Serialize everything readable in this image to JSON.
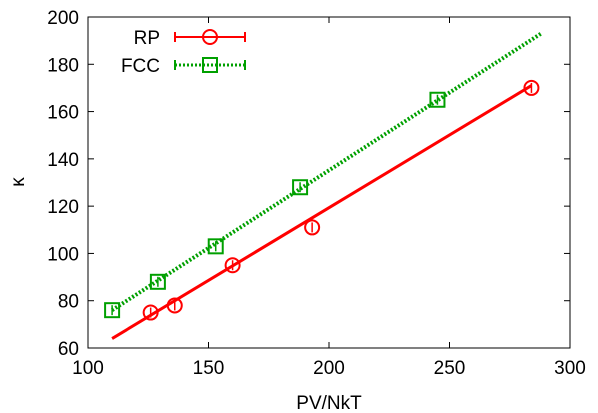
{
  "chart_data": {
    "type": "scatter",
    "title": "",
    "xlabel": "PV/NkT",
    "ylabel": "κ",
    "xlim": [
      100,
      300
    ],
    "ylim": [
      60,
      200
    ],
    "xticks": [
      "100",
      "150",
      "200",
      "250",
      "300"
    ],
    "yticks": [
      "60",
      "80",
      "100",
      "120",
      "140",
      "160",
      "180",
      "200"
    ],
    "grid": false,
    "legend_position": "top-left",
    "series": [
      {
        "name": "RP",
        "color": "#ff0000",
        "marker": "circle",
        "fit_line": "solid",
        "points": [
          {
            "x": 126,
            "y": 75
          },
          {
            "x": 136,
            "y": 78
          },
          {
            "x": 160,
            "y": 95
          },
          {
            "x": 193,
            "y": 111
          },
          {
            "x": 284,
            "y": 170
          }
        ],
        "fit": [
          {
            "x": 110,
            "y": 64
          },
          {
            "x": 284,
            "y": 171
          }
        ]
      },
      {
        "name": "FCC",
        "color": "#00a000",
        "marker": "square",
        "fit_line": "dotted",
        "points": [
          {
            "x": 110,
            "y": 76
          },
          {
            "x": 129,
            "y": 88
          },
          {
            "x": 153,
            "y": 103
          },
          {
            "x": 188,
            "y": 128
          },
          {
            "x": 245,
            "y": 165
          }
        ],
        "fit": [
          {
            "x": 110,
            "y": 76
          },
          {
            "x": 288,
            "y": 193
          }
        ]
      }
    ]
  }
}
